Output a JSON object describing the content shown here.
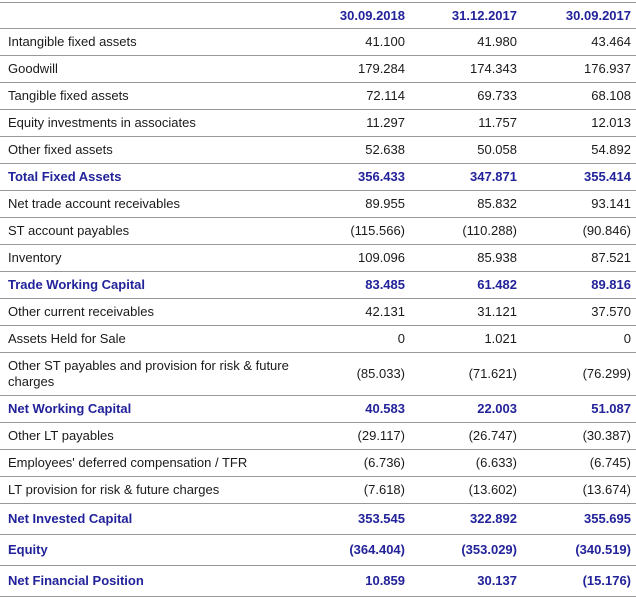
{
  "colors": {
    "accent_navy": "#22229a",
    "body_text": "#1a1a1a",
    "row_border": "#999999"
  },
  "table": {
    "columns": [
      "30.09.2018",
      "31.12.2017",
      "30.09.2017"
    ],
    "rows": [
      {
        "label": "Intangible fixed assets",
        "values": [
          "41.100",
          "41.980",
          "43.464"
        ],
        "highlight": false,
        "grand": false
      },
      {
        "label": "Goodwill",
        "values": [
          "179.284",
          "174.343",
          "176.937"
        ],
        "highlight": false,
        "grand": false
      },
      {
        "label": "Tangible fixed assets",
        "values": [
          "72.114",
          "69.733",
          "68.108"
        ],
        "highlight": false,
        "grand": false
      },
      {
        "label": "Equity investments in associates",
        "values": [
          "11.297",
          "11.757",
          "12.013"
        ],
        "highlight": false,
        "grand": false
      },
      {
        "label": "Other fixed assets",
        "values": [
          "52.638",
          "50.058",
          "54.892"
        ],
        "highlight": false,
        "grand": false
      },
      {
        "label": "Total Fixed Assets",
        "values": [
          "356.433",
          "347.871",
          "355.414"
        ],
        "highlight": true,
        "grand": false
      },
      {
        "label": "Net trade account receivables",
        "values": [
          "89.955",
          "85.832",
          "93.141"
        ],
        "highlight": false,
        "grand": false
      },
      {
        "label": "ST account payables",
        "values": [
          "(115.566)",
          "(110.288)",
          "(90.846)"
        ],
        "highlight": false,
        "grand": false
      },
      {
        "label": "Inventory",
        "values": [
          "109.096",
          "85.938",
          "87.521"
        ],
        "highlight": false,
        "grand": false
      },
      {
        "label": "Trade Working Capital",
        "values": [
          "83.485",
          "61.482",
          "89.816"
        ],
        "highlight": true,
        "grand": false
      },
      {
        "label": "Other current receivables",
        "values": [
          "42.131",
          "31.121",
          "37.570"
        ],
        "highlight": false,
        "grand": false
      },
      {
        "label": "Assets Held for Sale",
        "values": [
          "0",
          "1.021",
          "0"
        ],
        "highlight": false,
        "grand": false
      },
      {
        "label": "Other ST payables and provision for risk & future charges",
        "values": [
          "(85.033)",
          "(71.621)",
          "(76.299)"
        ],
        "highlight": false,
        "grand": false
      },
      {
        "label": "Net Working Capital",
        "values": [
          "40.583",
          "22.003",
          "51.087"
        ],
        "highlight": true,
        "grand": false
      },
      {
        "label": "Other LT payables",
        "values": [
          "(29.117)",
          "(26.747)",
          "(30.387)"
        ],
        "highlight": false,
        "grand": false
      },
      {
        "label": "Employees' deferred compensation / TFR",
        "values": [
          "(6.736)",
          "(6.633)",
          "(6.745)"
        ],
        "highlight": false,
        "grand": false
      },
      {
        "label": "LT provision for risk & future charges",
        "values": [
          "(7.618)",
          "(13.602)",
          "(13.674)"
        ],
        "highlight": false,
        "grand": false
      },
      {
        "label": "Net Invested Capital",
        "values": [
          "353.545",
          "322.892",
          "355.695"
        ],
        "highlight": true,
        "grand": true
      },
      {
        "label": "Equity",
        "values": [
          "(364.404)",
          "(353.029)",
          "(340.519)"
        ],
        "highlight": true,
        "grand": true
      },
      {
        "label": "Net Financial Position",
        "values": [
          "10.859",
          "30.137",
          "(15.176)"
        ],
        "highlight": true,
        "grand": true
      }
    ]
  }
}
